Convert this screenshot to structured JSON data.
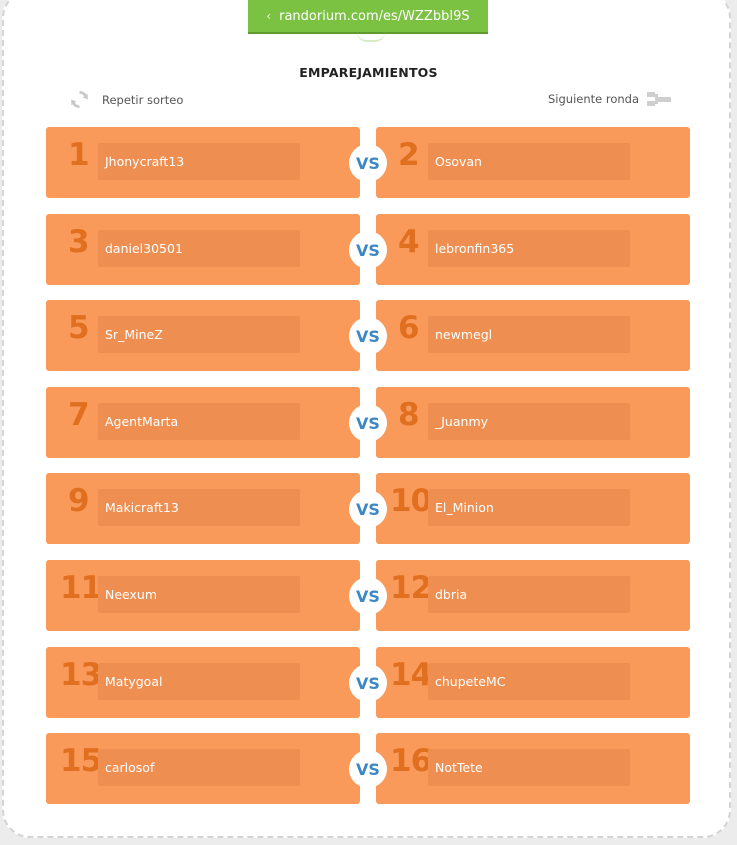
{
  "banner": {
    "url": "randorium.com/es/WZZbbI9S"
  },
  "header": {
    "title": "EMPAREJAMIENTOS",
    "repeat_label": "Repetir sorteo",
    "next_label": "Siguiente ronda"
  },
  "vs_label": "VS",
  "colors": {
    "accent_green": "#7cc242",
    "box_orange": "#fa9a5a",
    "field_orange": "#ee8f51",
    "number_orange": "#e06f1f",
    "vs_blue": "#3d87c4"
  },
  "matches": [
    {
      "left": {
        "seed": "1",
        "name": "Jhonycraft13"
      },
      "right": {
        "seed": "2",
        "name": "Osovan"
      }
    },
    {
      "left": {
        "seed": "3",
        "name": "daniel30501"
      },
      "right": {
        "seed": "4",
        "name": "lebronfin365"
      }
    },
    {
      "left": {
        "seed": "5",
        "name": "Sr_MineZ"
      },
      "right": {
        "seed": "6",
        "name": "newmegl"
      }
    },
    {
      "left": {
        "seed": "7",
        "name": "AgentMarta"
      },
      "right": {
        "seed": "8",
        "name": "_Juanmy"
      }
    },
    {
      "left": {
        "seed": "9",
        "name": "Makicraft13"
      },
      "right": {
        "seed": "10",
        "name": "El_Minion"
      }
    },
    {
      "left": {
        "seed": "11",
        "name": "Neexum"
      },
      "right": {
        "seed": "12",
        "name": "dbria"
      }
    },
    {
      "left": {
        "seed": "13",
        "name": "Matygoal"
      },
      "right": {
        "seed": "14",
        "name": "chupeteMC"
      }
    },
    {
      "left": {
        "seed": "15",
        "name": "carlosof"
      },
      "right": {
        "seed": "16",
        "name": "NotTete"
      }
    }
  ]
}
